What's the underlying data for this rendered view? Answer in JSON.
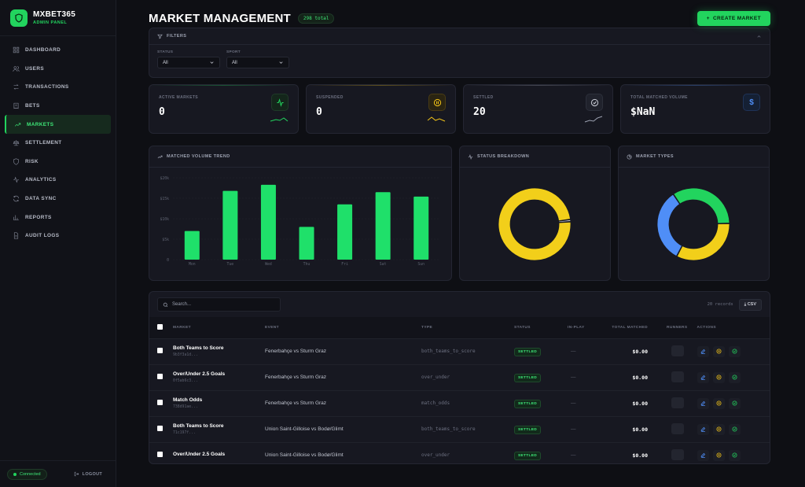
{
  "brand": {
    "name": "MXBET365",
    "subtitle": "ADMIN PANEL"
  },
  "sidebar": {
    "items": [
      {
        "label": "DASHBOARD",
        "icon": "grid-icon"
      },
      {
        "label": "USERS",
        "icon": "users-icon"
      },
      {
        "label": "TRANSACTIONS",
        "icon": "swap-icon"
      },
      {
        "label": "BETS",
        "icon": "receipt-icon"
      },
      {
        "label": "MARKETS",
        "icon": "trending-up-icon",
        "active": true
      },
      {
        "label": "SETTLEMENT",
        "icon": "scale-icon"
      },
      {
        "label": "RISK",
        "icon": "shield-icon"
      },
      {
        "label": "ANALYTICS",
        "icon": "activity-icon"
      },
      {
        "label": "DATA SYNC",
        "icon": "refresh-icon"
      },
      {
        "label": "REPORTS",
        "icon": "bar-chart-icon"
      },
      {
        "label": "AUDIT LOGS",
        "icon": "file-icon"
      }
    ],
    "status": "Connected",
    "logout": "LOGOUT"
  },
  "header": {
    "title": "MARKET MANAGEMENT",
    "total": "298 total",
    "create": "CREATE MARKET"
  },
  "filters": {
    "title": "FILTERS",
    "status": {
      "label": "STATUS",
      "value": "All"
    },
    "sport": {
      "label": "SPORT",
      "value": "All"
    }
  },
  "stats": [
    {
      "label": "ACTIVE MARKETS",
      "value": "0",
      "color": "#22d45e"
    },
    {
      "label": "SUSPENDED",
      "value": "0",
      "color": "#f2c318"
    },
    {
      "label": "SETTLED",
      "value": "20",
      "color": "#9ca1b0"
    },
    {
      "label": "TOTAL MATCHED VOLUME",
      "value": "$NaN",
      "color": "#4f8ef7"
    }
  ],
  "panels": {
    "trend": "MATCHED VOLUME TREND",
    "status": "STATUS BREAKDOWN",
    "types": "MARKET TYPES"
  },
  "chart_data": [
    {
      "type": "bar",
      "title": "MATCHED VOLUME TREND",
      "categories": [
        "Mon",
        "Tue",
        "Wed",
        "Thu",
        "Fri",
        "Sat",
        "Sun"
      ],
      "values": [
        7000,
        16800,
        18300,
        8000,
        13500,
        16500,
        15400
      ],
      "ytick_labels": [
        "$20k",
        "$15k",
        "$10k",
        "$5k",
        "0"
      ],
      "ylim": [
        0,
        20000
      ],
      "color": "#1fe06a"
    },
    {
      "type": "pie",
      "title": "STATUS BREAKDOWN",
      "values": [
        99,
        1
      ],
      "colors": [
        "#f2cf1a",
        "#c8cbd4"
      ]
    },
    {
      "type": "pie",
      "title": "MARKET TYPES",
      "values": [
        34,
        33,
        33
      ],
      "colors": [
        "#22d45e",
        "#f2cf1a",
        "#4f8ef7"
      ]
    }
  ],
  "table": {
    "search_placeholder": "Search...",
    "records": "20 records",
    "csv": "CSV",
    "columns": [
      "MARKET",
      "EVENT",
      "TYPE",
      "STATUS",
      "IN-PLAY",
      "TOTAL MATCHED",
      "RUNNERS",
      "ACTIONS"
    ],
    "rows": [
      {
        "market": "Both Teams to Score",
        "id": "9b3f3a1d...",
        "event": "Fenerbahçe vs Sturm Graz",
        "type": "both_teams_to_score",
        "status": "SETTLED",
        "inplay": "—",
        "matched": "$0.00"
      },
      {
        "market": "Over/Under 2.5 Goals",
        "id": "0f5ab6c3...",
        "event": "Fenerbahçe vs Sturm Graz",
        "type": "over_under",
        "status": "SETTLED",
        "inplay": "—",
        "matched": "$0.00"
      },
      {
        "market": "Match Odds",
        "id": "738d91ae...",
        "event": "Fenerbahçe vs Sturm Graz",
        "type": "match_odds",
        "status": "SETTLED",
        "inplay": "—",
        "matched": "$0.00"
      },
      {
        "market": "Both Teams to Score",
        "id": "71c197f...",
        "event": "Union Saint-Gilloise vs Bodø/Glimt",
        "type": "both_teams_to_score",
        "status": "SETTLED",
        "inplay": "—",
        "matched": "$0.00"
      },
      {
        "market": "Over/Under 2.5 Goals",
        "id": "",
        "event": "Union Saint-Gilloise vs Bodø/Glimt",
        "type": "over_under",
        "status": "SETTLED",
        "inplay": "—",
        "matched": "$0.00"
      }
    ]
  }
}
